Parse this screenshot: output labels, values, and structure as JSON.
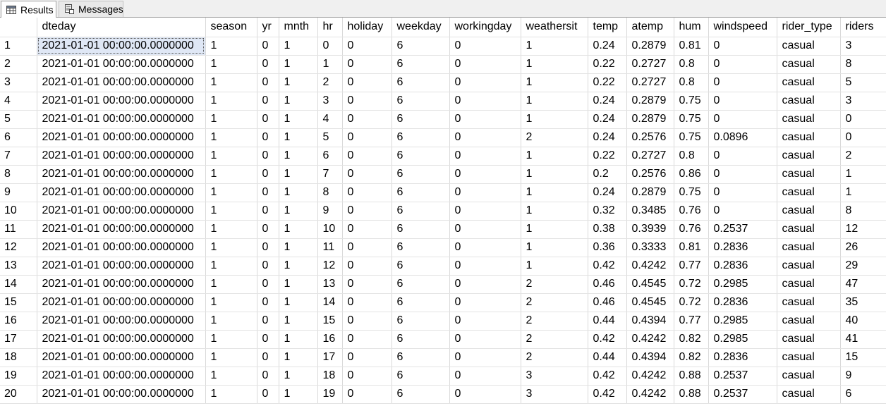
{
  "tabs": {
    "results_label": "Results",
    "messages_label": "Messages",
    "results_icon": "grid-icon",
    "messages_icon": "messages-icon"
  },
  "columns": [
    "",
    "dteday",
    "season",
    "yr",
    "mnth",
    "hr",
    "holiday",
    "weekday",
    "workingday",
    "weathersit",
    "temp",
    "atemp",
    "hum",
    "windspeed",
    "rider_type",
    "riders"
  ],
  "rows": [
    [
      "1",
      "2021-01-01 00:00:00.0000000",
      "1",
      "0",
      "1",
      "0",
      "0",
      "6",
      "0",
      "1",
      "0.24",
      "0.2879",
      "0.81",
      "0",
      "casual",
      "3"
    ],
    [
      "2",
      "2021-01-01 00:00:00.0000000",
      "1",
      "0",
      "1",
      "1",
      "0",
      "6",
      "0",
      "1",
      "0.22",
      "0.2727",
      "0.8",
      "0",
      "casual",
      "8"
    ],
    [
      "3",
      "2021-01-01 00:00:00.0000000",
      "1",
      "0",
      "1",
      "2",
      "0",
      "6",
      "0",
      "1",
      "0.22",
      "0.2727",
      "0.8",
      "0",
      "casual",
      "5"
    ],
    [
      "4",
      "2021-01-01 00:00:00.0000000",
      "1",
      "0",
      "1",
      "3",
      "0",
      "6",
      "0",
      "1",
      "0.24",
      "0.2879",
      "0.75",
      "0",
      "casual",
      "3"
    ],
    [
      "5",
      "2021-01-01 00:00:00.0000000",
      "1",
      "0",
      "1",
      "4",
      "0",
      "6",
      "0",
      "1",
      "0.24",
      "0.2879",
      "0.75",
      "0",
      "casual",
      "0"
    ],
    [
      "6",
      "2021-01-01 00:00:00.0000000",
      "1",
      "0",
      "1",
      "5",
      "0",
      "6",
      "0",
      "2",
      "0.24",
      "0.2576",
      "0.75",
      "0.0896",
      "casual",
      "0"
    ],
    [
      "7",
      "2021-01-01 00:00:00.0000000",
      "1",
      "0",
      "1",
      "6",
      "0",
      "6",
      "0",
      "1",
      "0.22",
      "0.2727",
      "0.8",
      "0",
      "casual",
      "2"
    ],
    [
      "8",
      "2021-01-01 00:00:00.0000000",
      "1",
      "0",
      "1",
      "7",
      "0",
      "6",
      "0",
      "1",
      "0.2",
      "0.2576",
      "0.86",
      "0",
      "casual",
      "1"
    ],
    [
      "9",
      "2021-01-01 00:00:00.0000000",
      "1",
      "0",
      "1",
      "8",
      "0",
      "6",
      "0",
      "1",
      "0.24",
      "0.2879",
      "0.75",
      "0",
      "casual",
      "1"
    ],
    [
      "10",
      "2021-01-01 00:00:00.0000000",
      "1",
      "0",
      "1",
      "9",
      "0",
      "6",
      "0",
      "1",
      "0.32",
      "0.3485",
      "0.76",
      "0",
      "casual",
      "8"
    ],
    [
      "11",
      "2021-01-01 00:00:00.0000000",
      "1",
      "0",
      "1",
      "10",
      "0",
      "6",
      "0",
      "1",
      "0.38",
      "0.3939",
      "0.76",
      "0.2537",
      "casual",
      "12"
    ],
    [
      "12",
      "2021-01-01 00:00:00.0000000",
      "1",
      "0",
      "1",
      "11",
      "0",
      "6",
      "0",
      "1",
      "0.36",
      "0.3333",
      "0.81",
      "0.2836",
      "casual",
      "26"
    ],
    [
      "13",
      "2021-01-01 00:00:00.0000000",
      "1",
      "0",
      "1",
      "12",
      "0",
      "6",
      "0",
      "1",
      "0.42",
      "0.4242",
      "0.77",
      "0.2836",
      "casual",
      "29"
    ],
    [
      "14",
      "2021-01-01 00:00:00.0000000",
      "1",
      "0",
      "1",
      "13",
      "0",
      "6",
      "0",
      "2",
      "0.46",
      "0.4545",
      "0.72",
      "0.2985",
      "casual",
      "47"
    ],
    [
      "15",
      "2021-01-01 00:00:00.0000000",
      "1",
      "0",
      "1",
      "14",
      "0",
      "6",
      "0",
      "2",
      "0.46",
      "0.4545",
      "0.72",
      "0.2836",
      "casual",
      "35"
    ],
    [
      "16",
      "2021-01-01 00:00:00.0000000",
      "1",
      "0",
      "1",
      "15",
      "0",
      "6",
      "0",
      "2",
      "0.44",
      "0.4394",
      "0.77",
      "0.2985",
      "casual",
      "40"
    ],
    [
      "17",
      "2021-01-01 00:00:00.0000000",
      "1",
      "0",
      "1",
      "16",
      "0",
      "6",
      "0",
      "2",
      "0.42",
      "0.4242",
      "0.82",
      "0.2985",
      "casual",
      "41"
    ],
    [
      "18",
      "2021-01-01 00:00:00.0000000",
      "1",
      "0",
      "1",
      "17",
      "0",
      "6",
      "0",
      "2",
      "0.44",
      "0.4394",
      "0.82",
      "0.2836",
      "casual",
      "15"
    ],
    [
      "19",
      "2021-01-01 00:00:00.0000000",
      "1",
      "0",
      "1",
      "18",
      "0",
      "6",
      "0",
      "3",
      "0.42",
      "0.4242",
      "0.88",
      "0.2537",
      "casual",
      "9"
    ],
    [
      "20",
      "2021-01-01 00:00:00.0000000",
      "1",
      "0",
      "1",
      "19",
      "0",
      "6",
      "0",
      "3",
      "0.42",
      "0.4242",
      "0.88",
      "0.2537",
      "casual",
      "6"
    ]
  ]
}
